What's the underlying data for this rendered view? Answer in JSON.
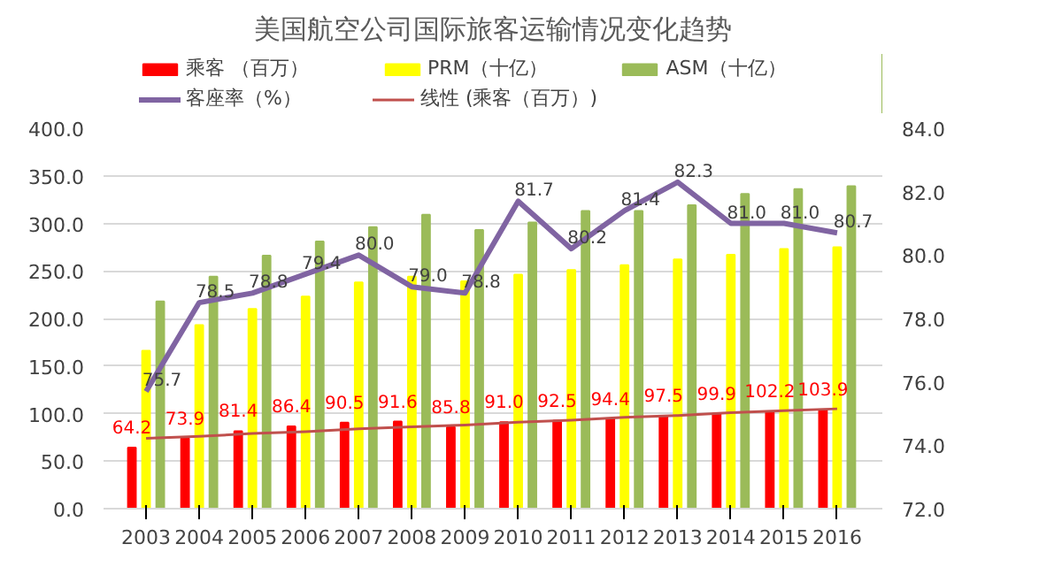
{
  "chart_data": {
    "type": "bar",
    "title": "美国航空公司国际旅客运输情况变化趋势",
    "categories": [
      "2003",
      "2004",
      "2005",
      "2006",
      "2007",
      "2008",
      "2009",
      "2010",
      "2011",
      "2012",
      "2013",
      "2014",
      "2015",
      "2016"
    ],
    "series": [
      {
        "name": "乘客 （百万）",
        "color": "#ff0000",
        "values": [
          64.2,
          73.9,
          81.4,
          86.4,
          90.5,
          91.6,
          85.8,
          91.0,
          92.5,
          94.4,
          97.5,
          99.9,
          102.2,
          103.9
        ],
        "value_labels": [
          "64.2",
          "73.9",
          "81.4",
          "86.4",
          "90.5",
          "91.6",
          "85.8",
          "91.0",
          "92.5",
          "94.4",
          "97.5",
          "99.9",
          "102.2",
          "103.9"
        ]
      },
      {
        "name": "PRM（十亿）",
        "color": "#ffff00",
        "values": [
          166,
          193,
          210,
          223,
          238,
          244,
          239,
          246,
          251,
          256,
          262,
          267,
          273,
          275
        ]
      },
      {
        "name": "ASM（十亿）",
        "color": "#9bbb59",
        "values": [
          218,
          244,
          266,
          281,
          296,
          309,
          293,
          301,
          313,
          313,
          319,
          331,
          336,
          339
        ]
      },
      {
        "name": "客座率（%）",
        "type": "line",
        "axis": "y2",
        "color": "#8064a2",
        "values": [
          75.7,
          78.5,
          78.8,
          79.4,
          80.0,
          79.0,
          78.8,
          81.7,
          80.2,
          81.4,
          82.3,
          81.0,
          81.0,
          80.7
        ],
        "value_labels": [
          "75.7",
          "78.5",
          "78.8",
          "79.4",
          "80.0",
          "79.0",
          "78.8",
          "81.7",
          "80.2",
          "81.4",
          "82.3",
          "81.0",
          "81.0",
          "80.7"
        ]
      },
      {
        "name": "线性 (乘客（百万）)",
        "type": "line",
        "color": "#c0504d",
        "values": [
          74,
          76,
          79,
          81,
          84,
          86,
          88,
          91,
          93,
          96,
          98,
          101,
          103,
          105
        ]
      }
    ],
    "ylim": [
      0,
      400
    ],
    "yticks": [
      {
        "value": 0,
        "label": "0.0"
      },
      {
        "value": 50,
        "label": "50.0"
      },
      {
        "value": 100,
        "label": "100.0"
      },
      {
        "value": 150,
        "label": "150.0"
      },
      {
        "value": 200,
        "label": "200.0"
      },
      {
        "value": 250,
        "label": "250.0"
      },
      {
        "value": 300,
        "label": "300.0"
      },
      {
        "value": 350,
        "label": "350.0"
      },
      {
        "value": 400,
        "label": "400.0"
      }
    ],
    "y2lim": [
      72,
      84
    ],
    "y2ticks": [
      {
        "value": 72,
        "label": "72.0"
      },
      {
        "value": 74,
        "label": "74.0"
      },
      {
        "value": 76,
        "label": "76.0"
      },
      {
        "value": 78,
        "label": "78.0"
      },
      {
        "value": 80,
        "label": "80.0"
      },
      {
        "value": 82,
        "label": "82.0"
      },
      {
        "value": 84,
        "label": "84.0"
      }
    ],
    "grid": "y",
    "legend": "top"
  }
}
